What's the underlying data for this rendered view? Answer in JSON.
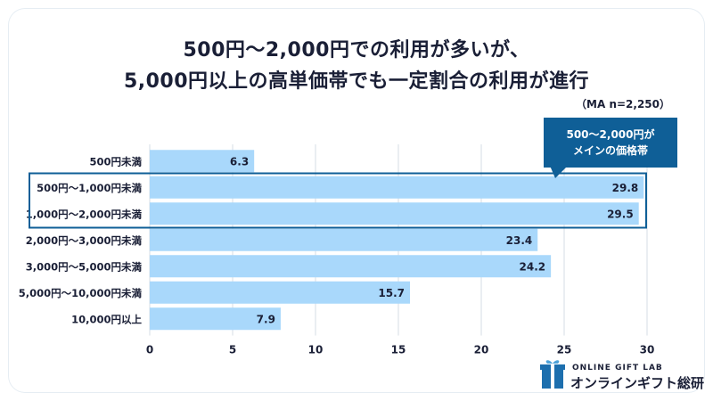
{
  "title": {
    "line1": "500円〜2,000円での利用が多いが、",
    "line2": "5,000円以上の高単価帯でも一定割合の利用が進行"
  },
  "note": "（MA n=2,250）",
  "callout": {
    "line1": "500〜2,000円が",
    "line2": "メインの価格帯"
  },
  "logo": {
    "en": "ONLINE GIFT LAB",
    "jp": "オンラインギフト総研"
  },
  "colors": {
    "bar": "#a9d8fb",
    "highlight": "#0f5f97",
    "grid": "#d5dde5",
    "text": "#1a1f36"
  },
  "chart_data": {
    "type": "bar",
    "orientation": "horizontal",
    "categories": [
      "500円未満",
      "500円〜1,000円未満",
      "1,000円〜2,000円未満",
      "2,000円〜3,000円未満",
      "3,000円〜5,000円未満",
      "5,000円〜10,000円未満",
      "10,000円以上"
    ],
    "values": [
      6.3,
      29.8,
      29.5,
      23.4,
      24.2,
      15.7,
      7.9
    ],
    "value_labels": [
      "6.3",
      "29.8",
      "29.5",
      "23.4",
      "24.2",
      "15.7",
      "7.9"
    ],
    "xlim": [
      0,
      30
    ],
    "xticks": [
      "0",
      "5",
      "10",
      "15",
      "20",
      "25",
      "30"
    ],
    "grid": true,
    "highlighted_categories": [
      1,
      2
    ]
  }
}
